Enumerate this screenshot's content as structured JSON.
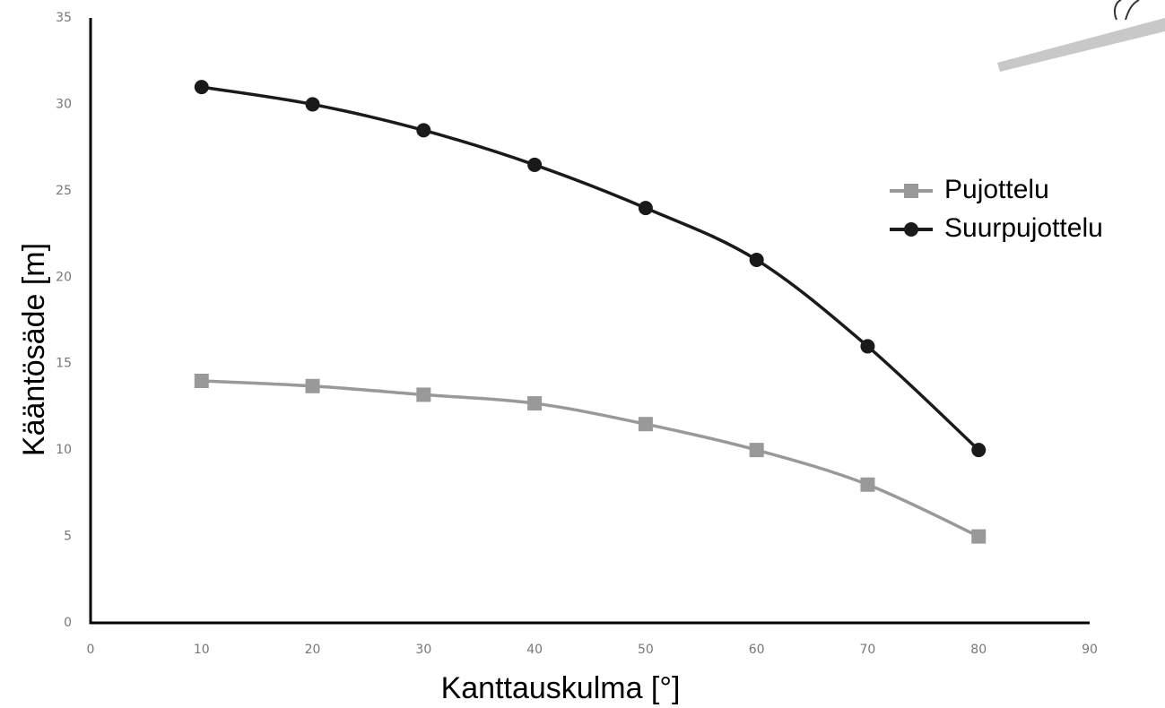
{
  "chart_data": {
    "type": "line",
    "x_label": "Kanttauskulma   [°]",
    "y_label": "Kääntösäde    [m]",
    "x": [
      10,
      20,
      30,
      40,
      50,
      60,
      70,
      80
    ],
    "series": [
      {
        "name": "Pujottelu",
        "color": "#999999",
        "marker": "square",
        "values": [
          14,
          13.7,
          13.2,
          12.7,
          11.5,
          10,
          8,
          5
        ]
      },
      {
        "name": "Suurpujottelu",
        "color": "#1a1a1a",
        "marker": "circle",
        "values": [
          31,
          30,
          28.5,
          26.5,
          24,
          21,
          16,
          10
        ]
      }
    ],
    "xlim": [
      0,
      90
    ],
    "xticks": [
      0,
      10,
      20,
      30,
      40,
      50,
      60,
      70,
      80,
      90
    ],
    "ylim": [
      0,
      35
    ],
    "yticks": [
      0,
      5,
      10,
      15,
      20,
      25,
      30,
      35
    ],
    "grid": false,
    "legend": "right"
  }
}
